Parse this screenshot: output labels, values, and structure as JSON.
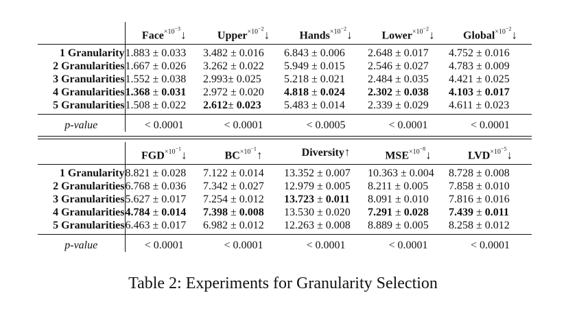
{
  "top": {
    "columns": [
      {
        "name": "Face",
        "scale": "×10",
        "exp": "−3",
        "arrow": "↓"
      },
      {
        "name": "Upper",
        "scale": "×10",
        "exp": "−2",
        "arrow": "↓"
      },
      {
        "name": "Hands",
        "scale": "×10",
        "exp": "−2",
        "arrow": "↓"
      },
      {
        "name": "Lower",
        "scale": "×10",
        "exp": "−2",
        "arrow": "↓"
      },
      {
        "name": "Global",
        "scale": "×10",
        "exp": "−2",
        "arrow": "↓"
      }
    ],
    "rows": [
      {
        "label": "1 Granularity",
        "cells": [
          {
            "mean": "1.883",
            "sep": " ± ",
            "std": "0.033",
            "bold_mean": false,
            "bold_std": false
          },
          {
            "mean": "3.482",
            "sep": " ± ",
            "std": "0.016",
            "bold_mean": false,
            "bold_std": false
          },
          {
            "mean": "6.843",
            "sep": " ± ",
            "std": "0.006",
            "bold_mean": false,
            "bold_std": false
          },
          {
            "mean": "2.648",
            "sep": " ± ",
            "std": "0.017",
            "bold_mean": false,
            "bold_std": false
          },
          {
            "mean": "4.752",
            "sep": " ± ",
            "std": "0.016",
            "bold_mean": false,
            "bold_std": false
          }
        ]
      },
      {
        "label": "2 Granularities",
        "cells": [
          {
            "mean": "1.667",
            "sep": " ± ",
            "std": "0.026",
            "bold_mean": false,
            "bold_std": false
          },
          {
            "mean": "3.262",
            "sep": " ± ",
            "std": "0.022",
            "bold_mean": false,
            "bold_std": false
          },
          {
            "mean": "5.949",
            "sep": " ± ",
            "std": "0.015",
            "bold_mean": false,
            "bold_std": false
          },
          {
            "mean": "2.546",
            "sep": " ± ",
            "std": "0.027",
            "bold_mean": false,
            "bold_std": false
          },
          {
            "mean": "4.783",
            "sep": " ± ",
            "std": "0.009",
            "bold_mean": false,
            "bold_std": false
          }
        ]
      },
      {
        "label": "3 Granularities",
        "cells": [
          {
            "mean": "1.552",
            "sep": " ± ",
            "std": "0.038",
            "bold_mean": false,
            "bold_std": false
          },
          {
            "mean": "2.993",
            "sep": "± ",
            "std": "0.025",
            "bold_mean": false,
            "bold_std": false
          },
          {
            "mean": "5.218",
            "sep": " ± ",
            "std": "0.021",
            "bold_mean": false,
            "bold_std": false
          },
          {
            "mean": "2.484",
            "sep": " ± ",
            "std": "0.035",
            "bold_mean": false,
            "bold_std": false
          },
          {
            "mean": "4.421",
            "sep": " ± ",
            "std": "0.025",
            "bold_mean": false,
            "bold_std": false
          }
        ]
      },
      {
        "label": "4 Granularities",
        "cells": [
          {
            "mean": "1.368",
            "sep": " ± ",
            "std": "0.031",
            "bold_mean": true,
            "bold_std": true
          },
          {
            "mean": "2.972",
            "sep": " ± ",
            "std": "0.020",
            "bold_mean": false,
            "bold_std": false
          },
          {
            "mean": "4.818",
            "sep": " ± ",
            "std": "0.024",
            "bold_mean": true,
            "bold_std": true
          },
          {
            "mean": "2.302",
            "sep": " ± ",
            "std": "0.038",
            "bold_mean": true,
            "bold_std": true
          },
          {
            "mean": "4.103",
            "sep": " ± ",
            "std": "0.017",
            "bold_mean": true,
            "bold_std": true
          }
        ]
      },
      {
        "label": "5 Granularities",
        "cells": [
          {
            "mean": "1.508",
            "sep": " ± ",
            "std": "0.022",
            "bold_mean": false,
            "bold_std": false
          },
          {
            "mean": "2.612",
            "sep": "± ",
            "std": "0.023",
            "bold_mean": true,
            "bold_std": true
          },
          {
            "mean": "5.483",
            "sep": " ± ",
            "std": "0.014",
            "bold_mean": false,
            "bold_std": false
          },
          {
            "mean": "2.339",
            "sep": " ± ",
            "std": "0.029",
            "bold_mean": false,
            "bold_std": false
          },
          {
            "mean": "4.611",
            "sep": " ± ",
            "std": "0.023",
            "bold_mean": false,
            "bold_std": false
          }
        ]
      }
    ],
    "pvalue_label": "p-value",
    "pvalues": [
      "< 0.0001",
      "< 0.0001",
      "< 0.0005",
      "< 0.0001",
      "< 0.0001"
    ]
  },
  "bottom": {
    "columns": [
      {
        "name": "FGD",
        "scale": "×10",
        "exp": "−1",
        "arrow": "↓"
      },
      {
        "name": "BC",
        "scale": "×10",
        "exp": "−1",
        "arrow": "↑"
      },
      {
        "name": "Diversity",
        "scale": "",
        "exp": "",
        "arrow": "↑"
      },
      {
        "name": "MSE",
        "scale": "×10",
        "exp": "−8",
        "arrow": "↓"
      },
      {
        "name": "LVD",
        "scale": "×10",
        "exp": "−5",
        "arrow": "↓"
      }
    ],
    "rows": [
      {
        "label": "1 Granularity",
        "cells": [
          {
            "mean": "8.821",
            "sep": " ± ",
            "std": "0.028",
            "bold_mean": false,
            "bold_std": false
          },
          {
            "mean": "7.122",
            "sep": " ± ",
            "std": "0.014",
            "bold_mean": false,
            "bold_std": false
          },
          {
            "mean": "13.352",
            "sep": " ± ",
            "std": "0.007",
            "bold_mean": false,
            "bold_std": false
          },
          {
            "mean": "10.363",
            "sep": " ± ",
            "std": "0.004",
            "bold_mean": false,
            "bold_std": false
          },
          {
            "mean": "8.728",
            "sep": " ± ",
            "std": "0.008",
            "bold_mean": false,
            "bold_std": false
          }
        ]
      },
      {
        "label": "2 Granularities",
        "cells": [
          {
            "mean": "6.768",
            "sep": " ± ",
            "std": "0.036",
            "bold_mean": false,
            "bold_std": false
          },
          {
            "mean": "7.342",
            "sep": " ± ",
            "std": "0.027",
            "bold_mean": false,
            "bold_std": false
          },
          {
            "mean": "12.979",
            "sep": " ± ",
            "std": "0.005",
            "bold_mean": false,
            "bold_std": false
          },
          {
            "mean": "8.211",
            "sep": " ± ",
            "std": "0.005",
            "bold_mean": false,
            "bold_std": false
          },
          {
            "mean": "7.858",
            "sep": " ± ",
            "std": "0.010",
            "bold_mean": false,
            "bold_std": false
          }
        ]
      },
      {
        "label": "3 Granularities",
        "cells": [
          {
            "mean": "5.627",
            "sep": " ± ",
            "std": "0.017",
            "bold_mean": false,
            "bold_std": false
          },
          {
            "mean": "7.254",
            "sep": " ± ",
            "std": "0.012",
            "bold_mean": false,
            "bold_std": false
          },
          {
            "mean": "13.723",
            "sep": " ± ",
            "std": "0.011",
            "bold_mean": true,
            "bold_std": true
          },
          {
            "mean": "8.091",
            "sep": " ± ",
            "std": "0.010",
            "bold_mean": false,
            "bold_std": false
          },
          {
            "mean": "7.816",
            "sep": " ± ",
            "std": "0.016",
            "bold_mean": false,
            "bold_std": false
          }
        ]
      },
      {
        "label": "4 Granularities",
        "cells": [
          {
            "mean": "4.784",
            "sep": " ± ",
            "std": "0.014",
            "bold_mean": true,
            "bold_std": true
          },
          {
            "mean": "7.398",
            "sep": " ± ",
            "std": "0.008",
            "bold_mean": true,
            "bold_std": true
          },
          {
            "mean": "13.530",
            "sep": " ± ",
            "std": "0.020",
            "bold_mean": false,
            "bold_std": false
          },
          {
            "mean": "7.291",
            "sep": " ± ",
            "std": "0.028",
            "bold_mean": true,
            "bold_std": true
          },
          {
            "mean": "7.439",
            "sep": " ± ",
            "std": "0.011",
            "bold_mean": true,
            "bold_std": true
          }
        ]
      },
      {
        "label": "5 Granularities",
        "cells": [
          {
            "mean": "6.463",
            "sep": " ± ",
            "std": "0.017",
            "bold_mean": false,
            "bold_std": false
          },
          {
            "mean": "6.982",
            "sep": " ± ",
            "std": "0.012",
            "bold_mean": false,
            "bold_std": false
          },
          {
            "mean": "12.263",
            "sep": " ± ",
            "std": "0.008",
            "bold_mean": false,
            "bold_std": false
          },
          {
            "mean": "8.889",
            "sep": " ± ",
            "std": "0.005",
            "bold_mean": false,
            "bold_std": false
          },
          {
            "mean": "8.258",
            "sep": " ± ",
            "std": "0.012",
            "bold_mean": false,
            "bold_std": false
          }
        ]
      }
    ],
    "pvalue_label": "p-value",
    "pvalues": [
      "< 0.0001",
      "< 0.0001",
      "< 0.0001",
      "< 0.0001",
      "< 0.0001"
    ]
  },
  "caption": "Table 2: Experiments for Granularity Selection"
}
